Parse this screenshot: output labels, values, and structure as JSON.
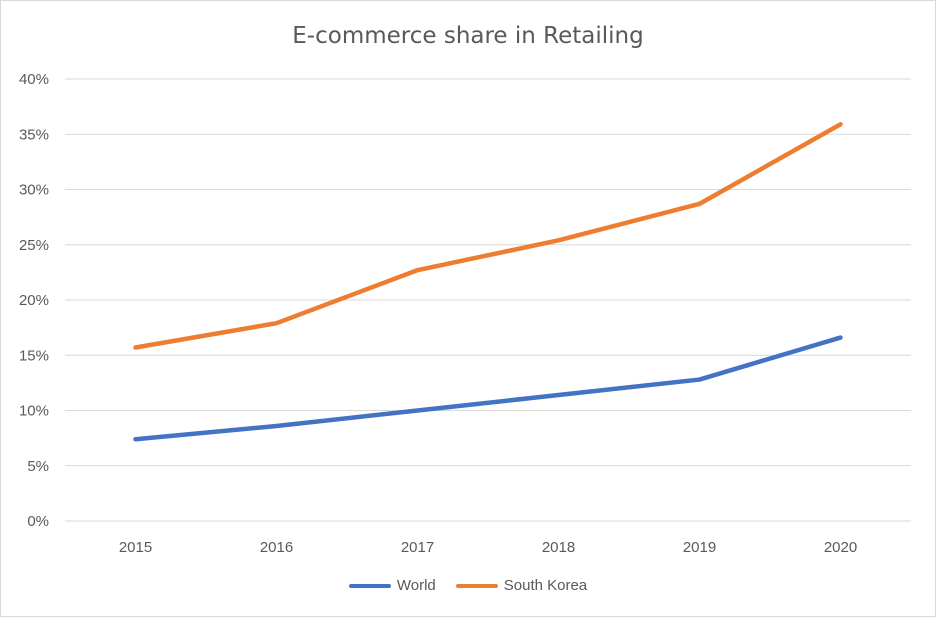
{
  "chart_data": {
    "type": "line",
    "title": "E-commerce share in Retailing",
    "categories": [
      "2015",
      "2016",
      "2017",
      "2018",
      "2019",
      "2020"
    ],
    "series": [
      {
        "name": "World",
        "color": "#4472c4",
        "values": [
          7.4,
          8.6,
          10.0,
          11.4,
          12.8,
          16.6
        ]
      },
      {
        "name": "South Korea",
        "color": "#ed7d31",
        "values": [
          15.7,
          17.9,
          22.7,
          25.4,
          28.7,
          35.9
        ]
      }
    ],
    "ylim": [
      0,
      40
    ],
    "yticks": [
      "0%",
      "5%",
      "10%",
      "15%",
      "20%",
      "25%",
      "30%",
      "35%",
      "40%"
    ],
    "grid": true,
    "legend": "bottom"
  }
}
